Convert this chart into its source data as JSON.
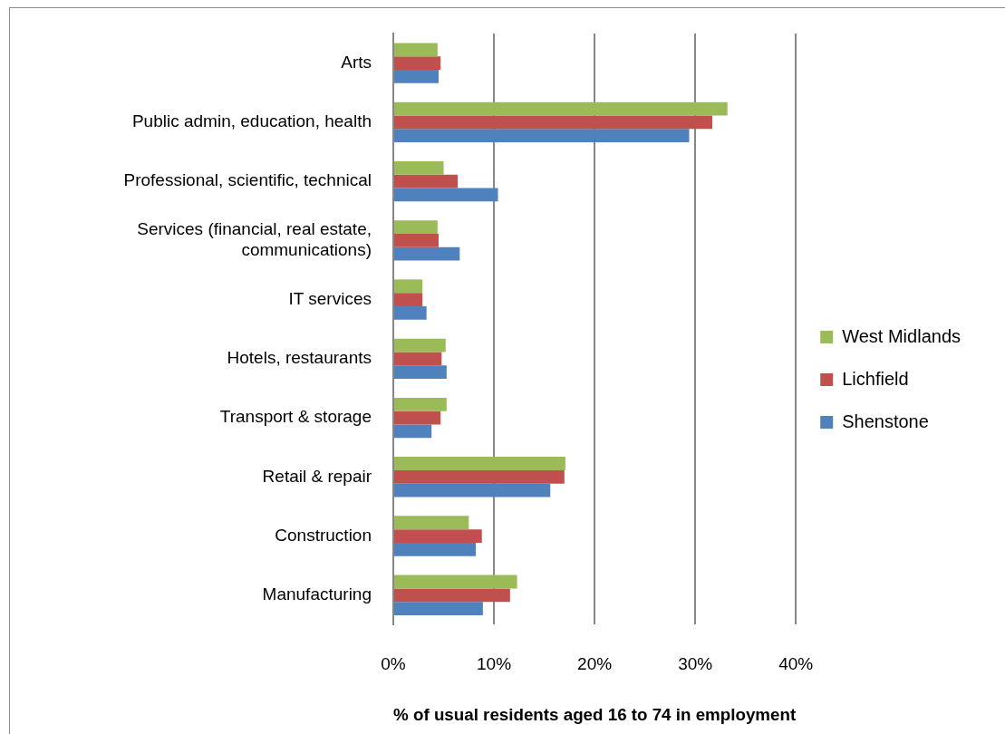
{
  "chart_data": {
    "type": "bar",
    "orientation": "horizontal",
    "categories": [
      "Arts",
      "Public admin, education, health",
      "Professional, scientific, technical",
      "Services (financial, real estate, communications)",
      "IT services",
      "Hotels, restaurants",
      "Transport & storage",
      "Retail & repair",
      "Construction",
      "Manufacturing"
    ],
    "series": [
      {
        "name": "West Midlands",
        "color": "#9bbb59",
        "values": [
          4.4,
          33.2,
          5.0,
          4.4,
          2.9,
          5.2,
          5.3,
          17.1,
          7.5,
          12.3
        ]
      },
      {
        "name": "Lichfield",
        "color": "#c0504d",
        "values": [
          4.7,
          31.7,
          6.4,
          4.5,
          2.9,
          4.8,
          4.7,
          17.0,
          8.8,
          11.6
        ]
      },
      {
        "name": "Shenstone",
        "color": "#4f81bd",
        "values": [
          4.5,
          29.4,
          10.4,
          6.6,
          3.3,
          5.3,
          3.8,
          15.6,
          8.2,
          8.9
        ]
      }
    ],
    "xlim": [
      0,
      40
    ],
    "xticks": [
      {
        "value": 0,
        "label": "0%"
      },
      {
        "value": 10,
        "label": "10%"
      },
      {
        "value": 20,
        "label": "20%"
      },
      {
        "value": 30,
        "label": "30%"
      },
      {
        "value": 40,
        "label": "40%"
      }
    ],
    "xlabel": "% of usual residents aged 16 to 74 in employment",
    "grid": "x",
    "legend": "right"
  }
}
